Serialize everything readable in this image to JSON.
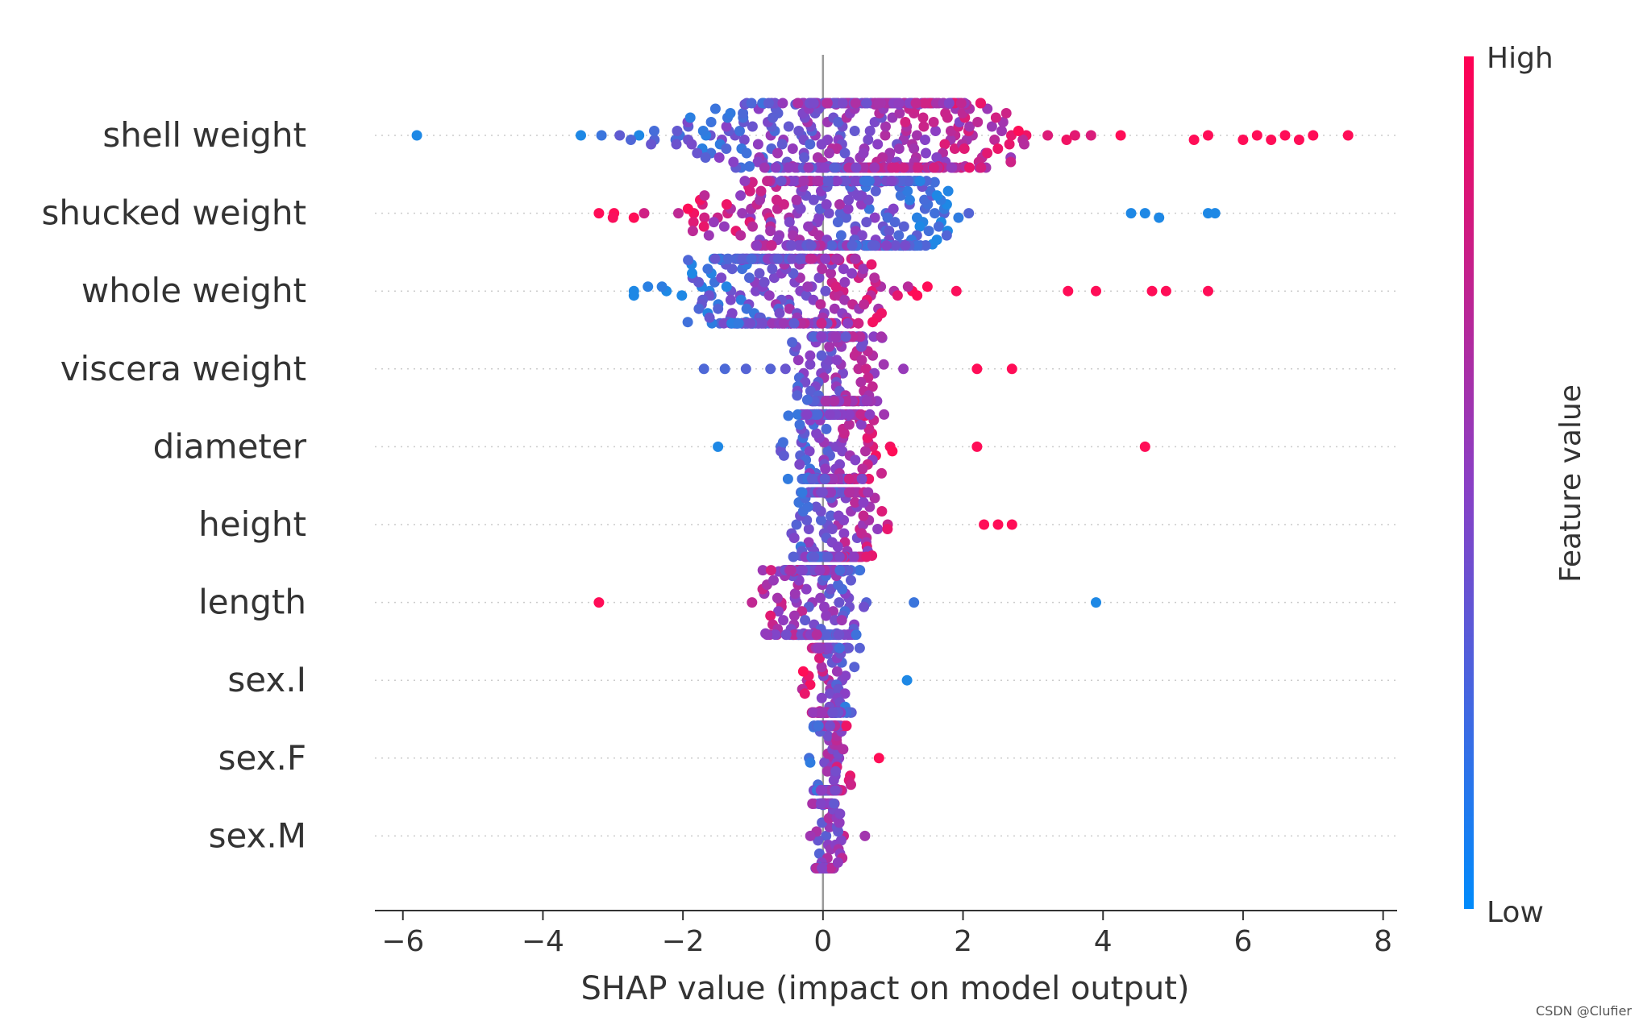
{
  "chart_data": {
    "type": "scatter",
    "subtype": "shap-beeswarm",
    "xlabel": "SHAP value (impact on model output)",
    "xlim": [
      -6.4,
      8.2
    ],
    "xticks": [
      -6,
      -4,
      -2,
      0,
      2,
      4,
      6,
      8
    ],
    "xtick_labels": [
      "−6",
      "−4",
      "−2",
      "0",
      "2",
      "4",
      "6",
      "8"
    ],
    "features": [
      {
        "name": "shell weight",
        "min": -5.8,
        "max": 7.5,
        "center": 0.3,
        "spread": 2.4,
        "peak": 1.0,
        "colorSlope": 0.6,
        "outliers": [
          -5.8,
          7.5,
          7.0,
          6.8,
          6.6,
          6.4,
          6.2,
          6.0,
          5.5,
          5.3
        ]
      },
      {
        "name": "shucked weight",
        "min": -3.2,
        "max": 5.6,
        "center": -0.2,
        "spread": 1.5,
        "peak": 1.0,
        "colorSlope": -0.7,
        "outliers": [
          -3.2,
          -3.0,
          -2.7,
          4.4,
          4.6,
          4.8,
          5.5,
          5.6
        ]
      },
      {
        "name": "whole weight",
        "min": -2.7,
        "max": 5.5,
        "center": -0.3,
        "spread": 1.2,
        "peak": -1.0,
        "colorSlope": 0.7,
        "outliers": [
          -2.7,
          -2.5,
          -2.3,
          3.5,
          3.9,
          4.7,
          4.9,
          5.5
        ]
      },
      {
        "name": "viscera weight",
        "min": -1.7,
        "max": 2.7,
        "center": 0.2,
        "spread": 0.55,
        "peak": 0.1,
        "colorSlope": 0.4,
        "outliers": [
          -1.7,
          -1.4,
          -1.1,
          2.2,
          2.7
        ]
      },
      {
        "name": "diameter",
        "min": -1.5,
        "max": 4.6,
        "center": 0.2,
        "spread": 0.55,
        "peak": 0.0,
        "colorSlope": 0.7,
        "outliers": [
          -1.5,
          2.2,
          4.6
        ]
      },
      {
        "name": "height",
        "min": -0.9,
        "max": 2.7,
        "center": 0.2,
        "spread": 0.5,
        "peak": 0.0,
        "colorSlope": 0.6,
        "outliers": [
          2.3,
          2.5,
          2.7
        ]
      },
      {
        "name": "length",
        "min": -3.2,
        "max": 3.9,
        "center": -0.2,
        "spread": 0.6,
        "peak": 0.0,
        "colorSlope": -0.5,
        "outliers": [
          -3.2,
          1.3,
          3.9
        ]
      },
      {
        "name": "sex.I",
        "min": -0.6,
        "max": 1.2,
        "center": 0.1,
        "spread": 0.3,
        "peak": 0.05,
        "colorSlope": -1.0,
        "outliers": [
          1.2
        ]
      },
      {
        "name": "sex.F",
        "min": -0.4,
        "max": 0.8,
        "center": 0.1,
        "spread": 0.2,
        "peak": 0.0,
        "colorSlope": 1.0,
        "outliers": [
          0.8
        ]
      },
      {
        "name": "sex.M",
        "min": -0.4,
        "max": 0.6,
        "center": 0.05,
        "spread": 0.15,
        "peak": 0.0,
        "colorSlope": 0.2,
        "outliers": [
          0.6
        ]
      }
    ],
    "colorbar": {
      "label": "Feature value",
      "high_label": "High",
      "low_label": "Low",
      "high_color": "#ff0052",
      "low_color": "#008bfb"
    }
  },
  "watermark": "CSDN @Clufier"
}
